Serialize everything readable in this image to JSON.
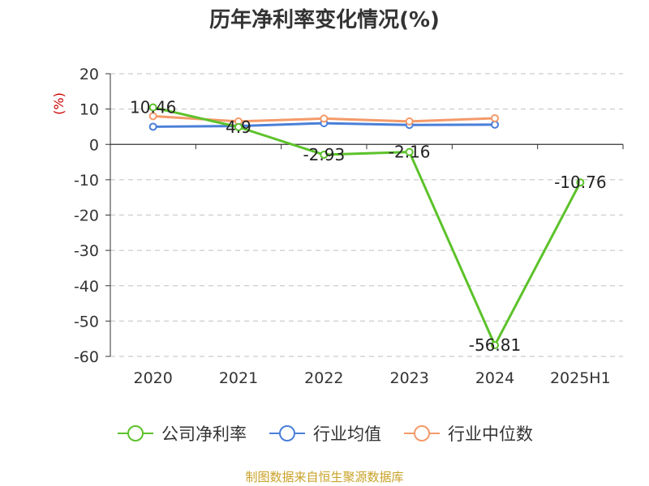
{
  "title": "历年净利率变化情况(%)",
  "footer": "制图数据来自恒生聚源数据库",
  "chart_data": {
    "type": "line",
    "title": "历年净利率变化情况(%)",
    "ylabel": "(%)",
    "categories": [
      "2020",
      "2021",
      "2022",
      "2023",
      "2024",
      "2025H1"
    ],
    "ylim": [
      -60,
      20
    ],
    "yticks": [
      20,
      10,
      0,
      -10,
      -20,
      -30,
      -40,
      -50,
      -60
    ],
    "grid": true,
    "legend_position": "bottom",
    "series": [
      {
        "name": "公司净利率",
        "color": "#5cc22a",
        "values": [
          10.46,
          4.9,
          -2.93,
          -2.16,
          -56.81,
          -10.76
        ],
        "labels": [
          "10.46",
          "4.9",
          "-2.93",
          "-2.16",
          "-56.81",
          "-10.76"
        ]
      },
      {
        "name": "行业均值",
        "color": "#4a7fd8",
        "values": [
          5.0,
          5.2,
          6.0,
          5.5,
          5.6,
          null
        ]
      },
      {
        "name": "行业中位数",
        "color": "#f49a6a",
        "values": [
          8.0,
          6.5,
          7.3,
          6.5,
          7.4,
          null
        ]
      }
    ]
  }
}
